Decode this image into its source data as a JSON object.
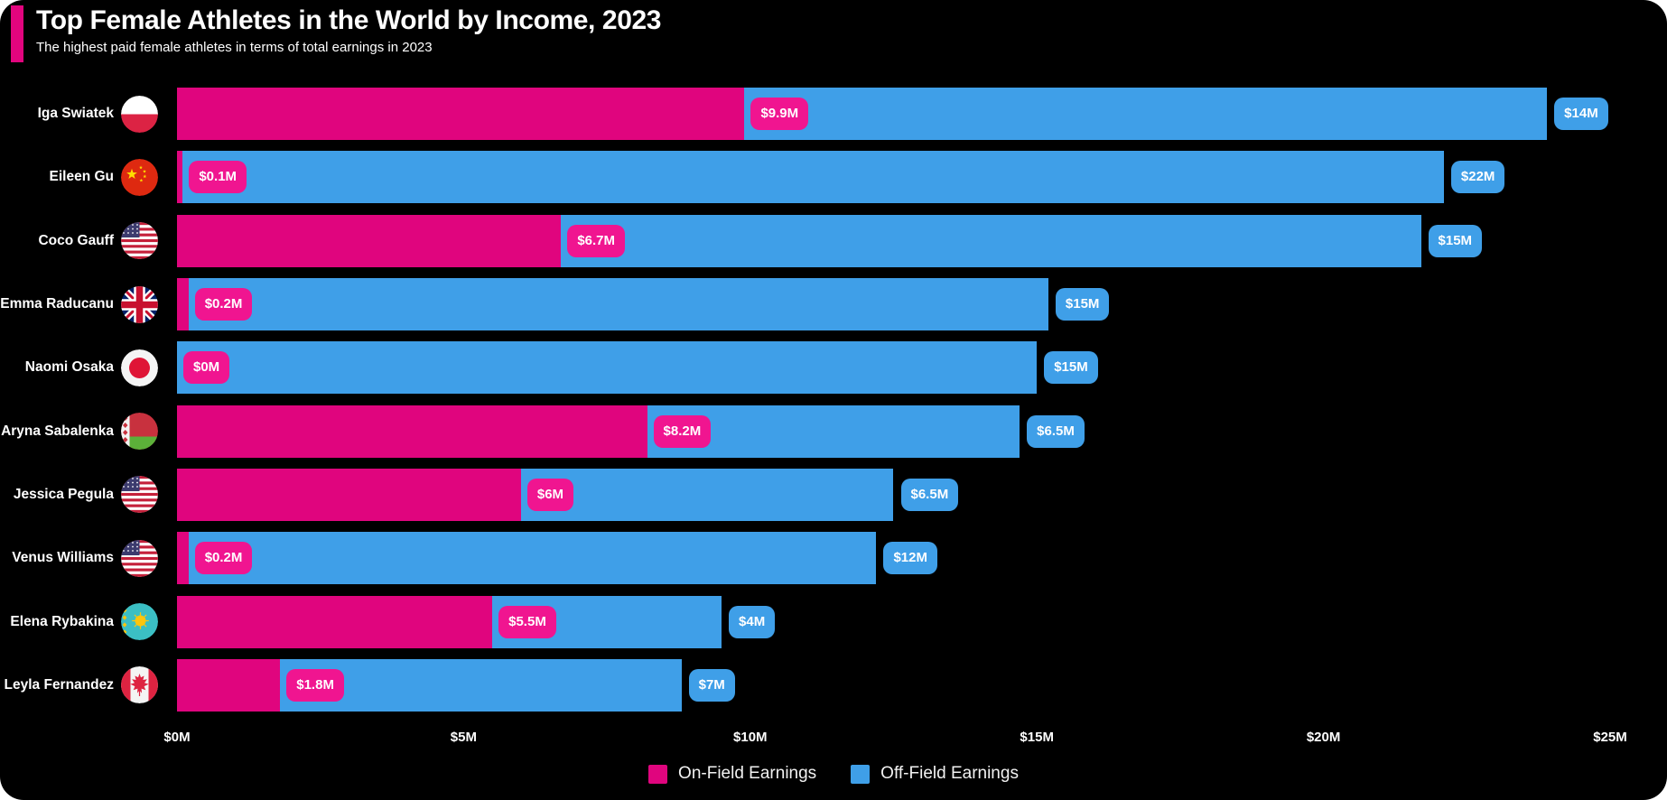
{
  "header": {
    "title": "Top Female Athletes in the World by Income, 2023",
    "subtitle": "The highest paid female athletes in terms of total earnings in 2023"
  },
  "colors": {
    "accent": "#E2057E",
    "on_field_bar": "#E0057E",
    "on_field_badge": "#F01590",
    "off_field_bar": "#3F9FE8",
    "background": "#000000",
    "text": "#FFFFFF"
  },
  "chart_data": {
    "type": "bar",
    "orientation": "horizontal",
    "stacked": true,
    "title": "Top Female Athletes in the World by Income, 2023",
    "subtitle": "The highest paid female athletes in terms of total earnings in 2023",
    "categories": [
      "Iga Swiatek",
      "Eileen Gu",
      "Coco Gauff",
      "Emma Raducanu",
      "Naomi Osaka",
      "Aryna Sabalenka",
      "Jessica Pegula",
      "Venus Williams",
      "Elena Rybakina",
      "Leyla Fernandez"
    ],
    "flags": [
      "poland",
      "china",
      "usa",
      "uk",
      "japan",
      "belarus",
      "usa",
      "usa",
      "kazakhstan",
      "canada"
    ],
    "series": [
      {
        "name": "On-Field Earnings",
        "color": "#E0057E",
        "badge_color": "#F01590",
        "values": [
          9.9,
          0.1,
          6.7,
          0.2,
          0,
          8.2,
          6,
          0.2,
          5.5,
          1.8
        ],
        "labels": [
          "$9.9M",
          "$0.1M",
          "$6.7M",
          "$0.2M",
          "$0M",
          "$8.2M",
          "$6M",
          "$0.2M",
          "$5.5M",
          "$1.8M"
        ]
      },
      {
        "name": "Off-Field Earnings",
        "color": "#3F9FE8",
        "badge_color": "#3F9FE8",
        "values": [
          14,
          22,
          15,
          15,
          15,
          6.5,
          6.5,
          12,
          4,
          7
        ],
        "labels": [
          "$14M",
          "$22M",
          "$15M",
          "$15M",
          "$15M",
          "$6.5M",
          "$6.5M",
          "$12M",
          "$4M",
          "$7M"
        ]
      }
    ],
    "xlabel": "",
    "ylabel": "",
    "xlim": [
      0,
      25
    ],
    "x_ticks": {
      "values": [
        0,
        5,
        10,
        15,
        20,
        25
      ],
      "labels": [
        "$0M",
        "$5M",
        "$10M",
        "$15M",
        "$20M",
        "$25M"
      ]
    },
    "grid": false,
    "legend_position": "bottom"
  },
  "legend": {
    "items": [
      {
        "label": "On-Field Earnings",
        "color": "#E0057E"
      },
      {
        "label": "Off-Field Earnings",
        "color": "#3F9FE8"
      }
    ]
  }
}
